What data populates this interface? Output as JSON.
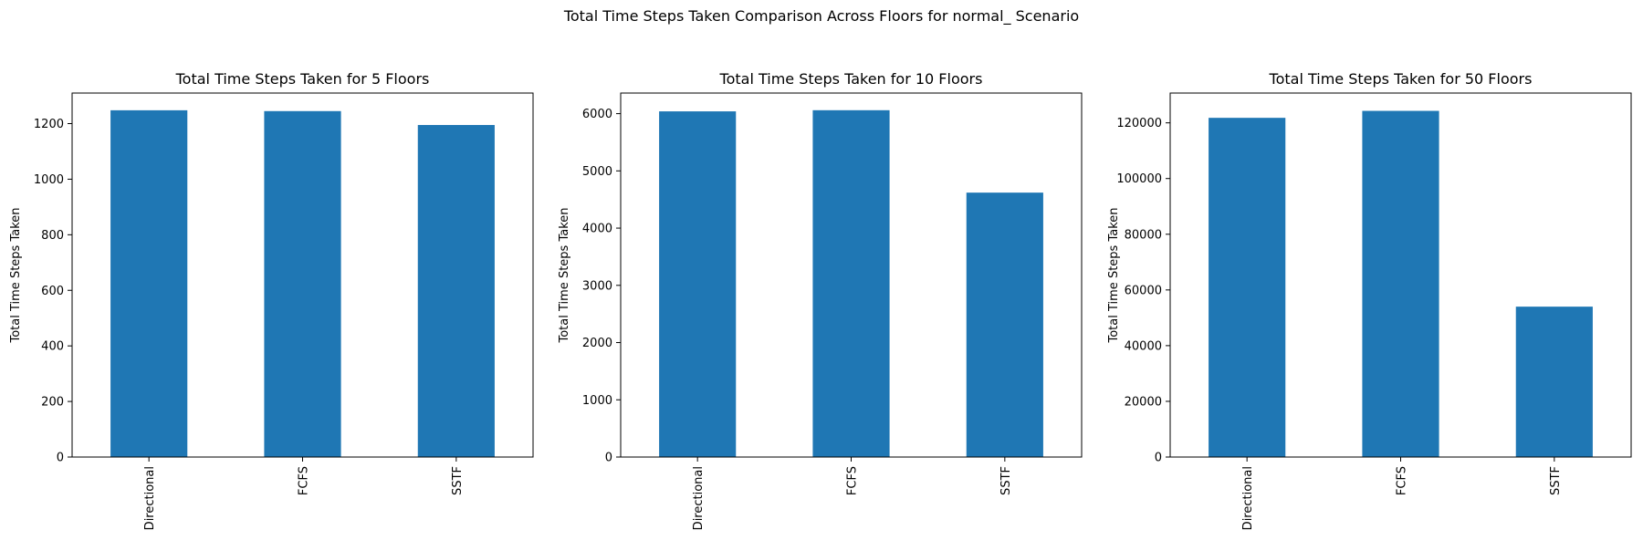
{
  "figure": {
    "suptitle": "Total Time Steps Taken Comparison Across Floors for normal_ Scenario"
  },
  "chart_data": [
    {
      "type": "bar",
      "title": "Total Time Steps Taken for 5 Floors",
      "xlabel": "",
      "ylabel": "Total Time Steps Taken",
      "categories": [
        "Directional",
        "FCFS",
        "SSTF"
      ],
      "values": [
        1248,
        1245,
        1195
      ],
      "ylim": [
        0,
        1310
      ],
      "yticks": [
        0,
        200,
        400,
        600,
        800,
        1000,
        1200
      ],
      "grid": false,
      "bar_color": "#1f77b4"
    },
    {
      "type": "bar",
      "title": "Total Time Steps Taken for 10 Floors",
      "xlabel": "",
      "ylabel": "Total Time Steps Taken",
      "categories": [
        "Directional",
        "FCFS",
        "SSTF"
      ],
      "values": [
        6040,
        6060,
        4620
      ],
      "ylim": [
        0,
        6360
      ],
      "yticks": [
        0,
        1000,
        2000,
        3000,
        4000,
        5000,
        6000
      ],
      "grid": false,
      "bar_color": "#1f77b4"
    },
    {
      "type": "bar",
      "title": "Total Time Steps Taken for 50 Floors",
      "xlabel": "",
      "ylabel": "Total Time Steps Taken",
      "categories": [
        "Directional",
        "FCFS",
        "SSTF"
      ],
      "values": [
        121800,
        124300,
        54000
      ],
      "ylim": [
        0,
        130700
      ],
      "yticks": [
        0,
        20000,
        40000,
        60000,
        80000,
        100000,
        120000
      ],
      "grid": false,
      "bar_color": "#1f77b4"
    }
  ]
}
